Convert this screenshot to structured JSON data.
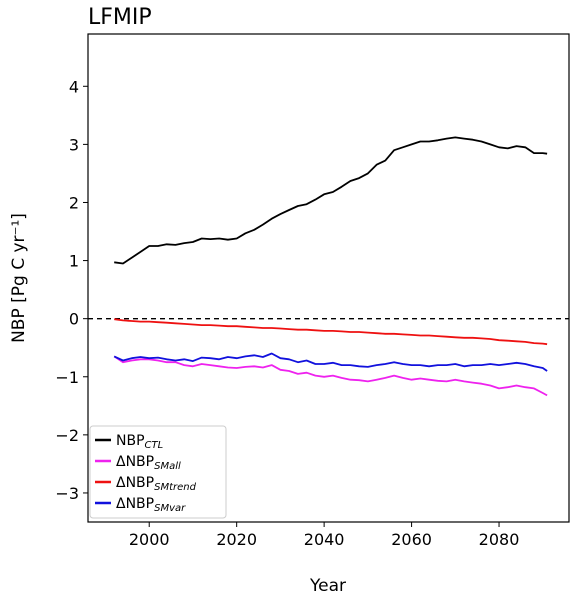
{
  "chart_data": {
    "type": "line",
    "title": "LFMIP",
    "xlabel": "Year",
    "ylabel": "NBP [Pg C yr⁻¹]",
    "xlim": [
      1986,
      2096
    ],
    "ylim": [
      -3.5,
      4.9
    ],
    "xticks": [
      2000,
      2020,
      2040,
      2060,
      2080
    ],
    "yticks": [
      -3,
      -2,
      -1,
      0,
      1,
      2,
      3,
      4
    ],
    "grid": false,
    "legend_position": "lower-left",
    "zero_line": {
      "y": 0,
      "style": "dashed",
      "color": "#000000"
    },
    "series": [
      {
        "key": "ctl",
        "name": "NBP",
        "name_sub": "CTL",
        "color": "#000000",
        "x": [
          1992,
          1994,
          1996,
          1998,
          2000,
          2002,
          2004,
          2006,
          2008,
          2010,
          2012,
          2014,
          2016,
          2018,
          2020,
          2022,
          2024,
          2026,
          2028,
          2030,
          2032,
          2034,
          2036,
          2038,
          2040,
          2042,
          2044,
          2046,
          2048,
          2050,
          2052,
          2054,
          2056,
          2058,
          2060,
          2062,
          2064,
          2066,
          2068,
          2070,
          2072,
          2074,
          2076,
          2078,
          2080,
          2082,
          2084,
          2086,
          2088,
          2090,
          2091
        ],
        "y": [
          0.97,
          0.95,
          1.05,
          1.15,
          1.25,
          1.25,
          1.28,
          1.27,
          1.3,
          1.32,
          1.38,
          1.37,
          1.38,
          1.36,
          1.38,
          1.47,
          1.53,
          1.62,
          1.72,
          1.8,
          1.87,
          1.94,
          1.97,
          2.05,
          2.14,
          2.18,
          2.27,
          2.37,
          2.42,
          2.5,
          2.65,
          2.72,
          2.9,
          2.95,
          3.0,
          3.05,
          3.05,
          3.07,
          3.1,
          3.12,
          3.1,
          3.08,
          3.05,
          3.0,
          2.95,
          2.93,
          2.97,
          2.95,
          2.85,
          2.85,
          2.84
        ]
      },
      {
        "key": "small",
        "name": "ΔNBP",
        "name_sub": "SMall",
        "color": "#ee22ee",
        "x": [
          1992,
          1994,
          1996,
          1998,
          2000,
          2002,
          2004,
          2006,
          2008,
          2010,
          2012,
          2014,
          2016,
          2018,
          2020,
          2022,
          2024,
          2026,
          2028,
          2030,
          2032,
          2034,
          2036,
          2038,
          2040,
          2042,
          2044,
          2046,
          2048,
          2050,
          2052,
          2054,
          2056,
          2058,
          2060,
          2062,
          2064,
          2066,
          2068,
          2070,
          2072,
          2074,
          2076,
          2078,
          2080,
          2082,
          2084,
          2086,
          2088,
          2090,
          2091
        ],
        "y": [
          -0.65,
          -0.75,
          -0.72,
          -0.7,
          -0.7,
          -0.72,
          -0.75,
          -0.75,
          -0.8,
          -0.82,
          -0.78,
          -0.8,
          -0.82,
          -0.84,
          -0.85,
          -0.83,
          -0.82,
          -0.84,
          -0.8,
          -0.88,
          -0.9,
          -0.95,
          -0.93,
          -0.98,
          -1.0,
          -0.98,
          -1.02,
          -1.05,
          -1.06,
          -1.08,
          -1.05,
          -1.02,
          -0.98,
          -1.02,
          -1.05,
          -1.03,
          -1.05,
          -1.07,
          -1.08,
          -1.05,
          -1.08,
          -1.1,
          -1.12,
          -1.15,
          -1.2,
          -1.18,
          -1.15,
          -1.18,
          -1.2,
          -1.28,
          -1.32
        ]
      },
      {
        "key": "smtrend",
        "name": "ΔNBP",
        "name_sub": "SMtrend",
        "color": "#ee1111",
        "x": [
          1992,
          1994,
          1996,
          1998,
          2000,
          2002,
          2004,
          2006,
          2008,
          2010,
          2012,
          2014,
          2016,
          2018,
          2020,
          2022,
          2024,
          2026,
          2028,
          2030,
          2032,
          2034,
          2036,
          2038,
          2040,
          2042,
          2044,
          2046,
          2048,
          2050,
          2052,
          2054,
          2056,
          2058,
          2060,
          2062,
          2064,
          2066,
          2068,
          2070,
          2072,
          2074,
          2076,
          2078,
          2080,
          2082,
          2084,
          2086,
          2088,
          2090,
          2091
        ],
        "y": [
          -0.01,
          -0.03,
          -0.04,
          -0.05,
          -0.05,
          -0.06,
          -0.07,
          -0.08,
          -0.09,
          -0.1,
          -0.11,
          -0.11,
          -0.12,
          -0.13,
          -0.13,
          -0.14,
          -0.15,
          -0.16,
          -0.16,
          -0.17,
          -0.18,
          -0.19,
          -0.19,
          -0.2,
          -0.21,
          -0.21,
          -0.22,
          -0.23,
          -0.23,
          -0.24,
          -0.25,
          -0.26,
          -0.26,
          -0.27,
          -0.28,
          -0.29,
          -0.29,
          -0.3,
          -0.31,
          -0.32,
          -0.33,
          -0.33,
          -0.34,
          -0.35,
          -0.37,
          -0.38,
          -0.39,
          -0.4,
          -0.42,
          -0.43,
          -0.44
        ]
      },
      {
        "key": "smvar",
        "name": "ΔNBP",
        "name_sub": "SMvar",
        "color": "#1111dd",
        "x": [
          1992,
          1994,
          1996,
          1998,
          2000,
          2002,
          2004,
          2006,
          2008,
          2010,
          2012,
          2014,
          2016,
          2018,
          2020,
          2022,
          2024,
          2026,
          2028,
          2030,
          2032,
          2034,
          2036,
          2038,
          2040,
          2042,
          2044,
          2046,
          2048,
          2050,
          2052,
          2054,
          2056,
          2058,
          2060,
          2062,
          2064,
          2066,
          2068,
          2070,
          2072,
          2074,
          2076,
          2078,
          2080,
          2082,
          2084,
          2086,
          2088,
          2090,
          2091
        ],
        "y": [
          -0.65,
          -0.72,
          -0.68,
          -0.66,
          -0.68,
          -0.67,
          -0.7,
          -0.72,
          -0.7,
          -0.73,
          -0.67,
          -0.68,
          -0.7,
          -0.66,
          -0.68,
          -0.65,
          -0.63,
          -0.66,
          -0.6,
          -0.68,
          -0.7,
          -0.75,
          -0.72,
          -0.78,
          -0.78,
          -0.76,
          -0.8,
          -0.8,
          -0.82,
          -0.83,
          -0.8,
          -0.78,
          -0.75,
          -0.78,
          -0.8,
          -0.8,
          -0.82,
          -0.8,
          -0.8,
          -0.78,
          -0.82,
          -0.8,
          -0.8,
          -0.78,
          -0.8,
          -0.78,
          -0.76,
          -0.78,
          -0.82,
          -0.85,
          -0.9
        ]
      }
    ]
  }
}
